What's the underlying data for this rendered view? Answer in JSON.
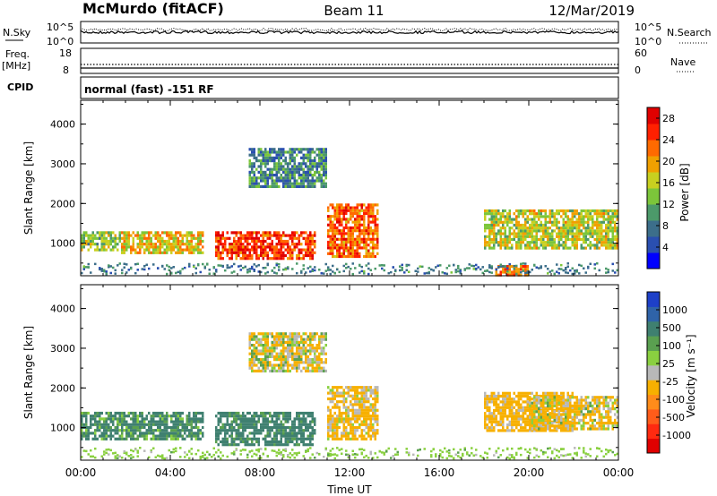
{
  "header": {
    "station": "McMurdo (fitACF)",
    "beam": "Beam 11",
    "date": "12/Mar/2019"
  },
  "noise_panel": {
    "left_label": "N.Sky",
    "right_label": "N.Search",
    "left_ticks": [
      "10^5",
      "10^0"
    ],
    "right_ticks": [
      "10^5",
      "10^0"
    ]
  },
  "freq_panel": {
    "left_label_1": "Freq.",
    "left_label_2": "[MHz]",
    "right_label": "Nave",
    "left_ticks": [
      "18",
      "8"
    ],
    "right_ticks": [
      "60",
      "0"
    ]
  },
  "cpid": {
    "label": "CPID",
    "mode": "normal (fast) -151 RF"
  },
  "chart_data": [
    {
      "type": "heatmap",
      "title": "",
      "xlabel": "",
      "ylabel": "Slant Range [km]",
      "xlim": [
        "00:00",
        "00:00"
      ],
      "ylim": [
        180,
        4600
      ],
      "y_ticks": [
        "1000",
        "2000",
        "3000",
        "4000"
      ],
      "colorbar": {
        "label": "Power [dB]",
        "ticks": [
          "4",
          "8",
          "12",
          "16",
          "20",
          "24",
          "28"
        ],
        "range": [
          0,
          30
        ]
      },
      "regions": [
        {
          "t": [
            0.0,
            1.8
          ],
          "r": [
            800,
            1300
          ],
          "value": 14
        },
        {
          "t": [
            1.8,
            5.5
          ],
          "r": [
            750,
            1300
          ],
          "value": 18
        },
        {
          "t": [
            6.0,
            10.5
          ],
          "r": [
            600,
            1300
          ],
          "value": 26
        },
        {
          "t": [
            11.0,
            13.3
          ],
          "r": [
            700,
            2000
          ],
          "value": 24
        },
        {
          "t": [
            18.0,
            24.0
          ],
          "r": [
            850,
            1850
          ],
          "value": 16
        },
        {
          "t": [
            7.5,
            11.0
          ],
          "r": [
            2400,
            3400
          ],
          "value": 8
        },
        {
          "t": [
            18.5,
            20.0
          ],
          "r": [
            200,
            450
          ],
          "value": 22
        }
      ]
    },
    {
      "type": "heatmap",
      "title": "",
      "xlabel": "Time UT",
      "ylabel": "Slant Range [km]",
      "x_ticks": [
        "00:00",
        "04:00",
        "08:00",
        "12:00",
        "16:00",
        "20:00",
        "00:00"
      ],
      "xlim": [
        "00:00",
        "00:00"
      ],
      "ylim": [
        180,
        4600
      ],
      "y_ticks": [
        "1000",
        "2000",
        "3000",
        "4000"
      ],
      "colorbar": {
        "label": "Velocity [m s⁻¹]",
        "ticks": [
          "1000",
          "500",
          "100",
          "25",
          "-25",
          "-100",
          "-500",
          "-1000"
        ]
      },
      "regions": [
        {
          "t": [
            0.0,
            5.5
          ],
          "r": [
            750,
            1400
          ],
          "value": 150
        },
        {
          "t": [
            6.0,
            10.5
          ],
          "r": [
            600,
            1400
          ],
          "value": 200
        },
        {
          "t": [
            11.0,
            13.3
          ],
          "r": [
            700,
            2050
          ],
          "value": -150
        },
        {
          "t": [
            18.0,
            22.0
          ],
          "r": [
            950,
            1900
          ],
          "value": -200
        },
        {
          "t": [
            20.0,
            24.0
          ],
          "r": [
            1000,
            1800
          ],
          "value": -100
        },
        {
          "t": [
            7.5,
            11.0
          ],
          "r": [
            2400,
            3400
          ],
          "value": -80
        }
      ]
    }
  ],
  "colors": {
    "power_scale": [
      "#0000ff",
      "#2a4fb0",
      "#3c6e8a",
      "#4c9a6a",
      "#7cc63a",
      "#c8d020",
      "#f0a000",
      "#ff6a00",
      "#ff2000",
      "#e00000"
    ],
    "velocity_scale": [
      "#1e40c8",
      "#2f63a8",
      "#3f8070",
      "#5aa050",
      "#8ad040",
      "#b8b8b8",
      "#f7b000",
      "#ff8c1a",
      "#ff5c1a",
      "#ff2a10",
      "#e00000"
    ]
  }
}
